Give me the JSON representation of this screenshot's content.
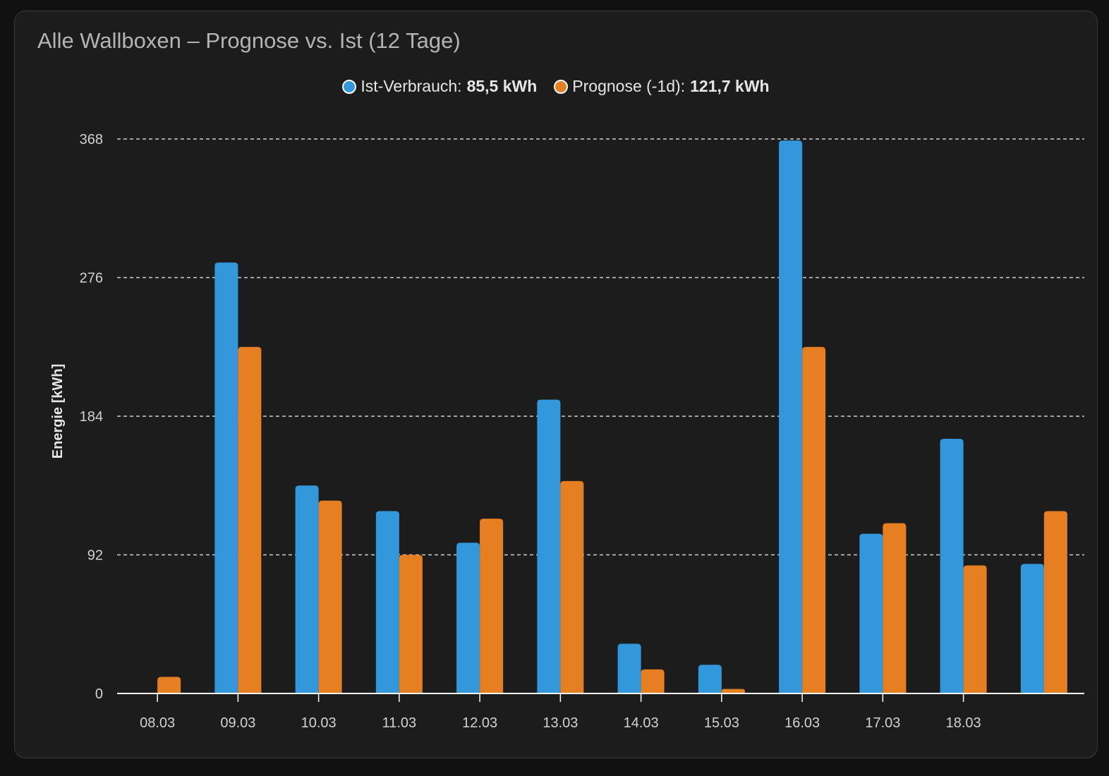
{
  "card": {
    "title": "Alle Wallboxen – Prognose vs. Ist (12 Tage)"
  },
  "legend": [
    {
      "label": "Ist-Verbrauch:",
      "value": "85,5 kWh",
      "color": "#3398db"
    },
    {
      "label": "Prognose (-1d):",
      "value": "121,7 kWh",
      "color": "#e67e22"
    }
  ],
  "chart_data": {
    "type": "bar",
    "title": "Alle Wallboxen – Prognose vs. Ist (12 Tage)",
    "ylabel": "Energie [kWh]",
    "xlabel": "",
    "ylim": [
      0,
      368
    ],
    "yticks": [
      0,
      92,
      184,
      276,
      368
    ],
    "grid": true,
    "legend_position": "top-center",
    "categories": [
      "08.03",
      "09.03",
      "10.03",
      "11.03",
      "12.03",
      "13.03",
      "14.03",
      "15.03",
      "16.03",
      "17.03",
      "18.03",
      ""
    ],
    "series": [
      {
        "name": "Ist-Verbrauch",
        "color": "#3398db",
        "values": [
          0,
          286,
          138,
          121,
          100,
          195,
          33,
          19,
          367,
          106,
          169,
          86
        ]
      },
      {
        "name": "Prognose (-1d)",
        "color": "#e67e22",
        "values": [
          11,
          230,
          128,
          92,
          116,
          141,
          16,
          3,
          230,
          113,
          85,
          121
        ]
      }
    ]
  }
}
